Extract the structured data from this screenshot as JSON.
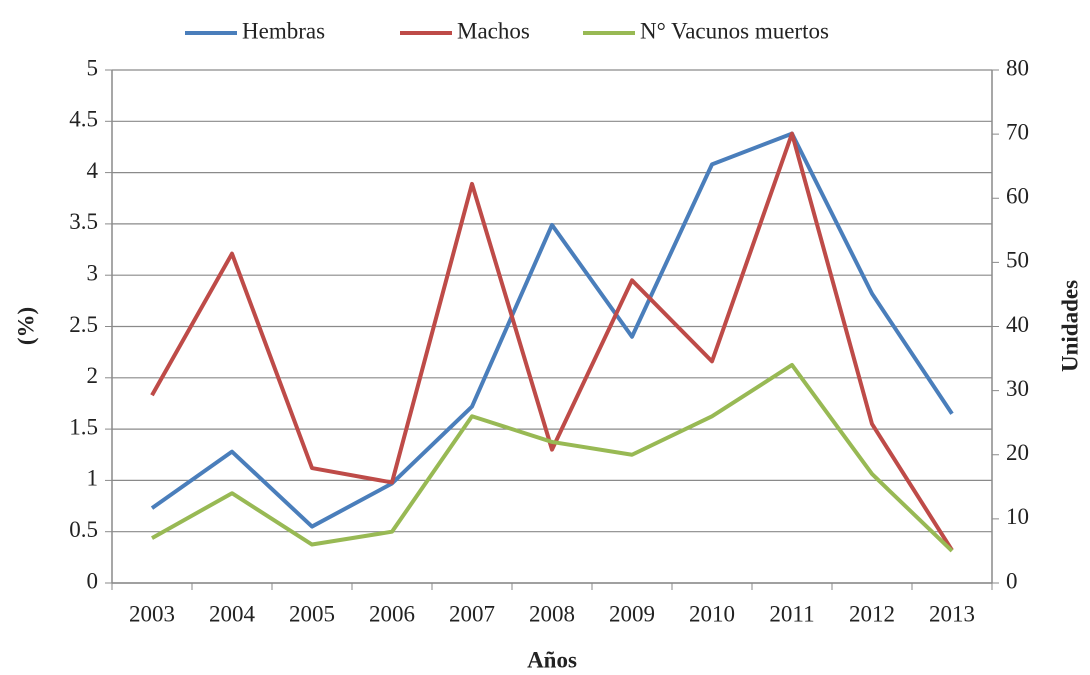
{
  "chart_data": {
    "type": "line",
    "categories": [
      "2003",
      "2004",
      "2005",
      "2006",
      "2007",
      "2008",
      "2009",
      "2010",
      "2011",
      "2012",
      "2013"
    ],
    "series": [
      {
        "name": "Hembras",
        "color": "#4a7ebb",
        "values": [
          0.73,
          1.28,
          0.55,
          0.97,
          1.72,
          3.49,
          2.4,
          4.08,
          4.38,
          2.82,
          1.65
        ]
      },
      {
        "name": "Machos",
        "color": "#be4b48",
        "values": [
          1.83,
          3.21,
          1.12,
          0.98,
          3.89,
          1.3,
          2.95,
          2.16,
          4.38,
          1.55,
          0.32
        ]
      },
      {
        "name": "N° Vacunos muertos",
        "color": "#98b954",
        "axis": "y2",
        "values": [
          7,
          14,
          6,
          8,
          26,
          22,
          20,
          26,
          34,
          17,
          5
        ]
      }
    ],
    "x_label": "Años",
    "y_label": "(%)",
    "y2_label": "Unidades",
    "ylim": [
      0,
      5
    ],
    "yticks": [
      0,
      0.5,
      1,
      1.5,
      2,
      2.5,
      3,
      3.5,
      4,
      4.5,
      5
    ],
    "y2lim": [
      0,
      80
    ],
    "y2ticks": [
      0,
      10,
      20,
      30,
      40,
      50,
      60,
      70,
      80
    ],
    "grid": true,
    "legend": "top"
  }
}
